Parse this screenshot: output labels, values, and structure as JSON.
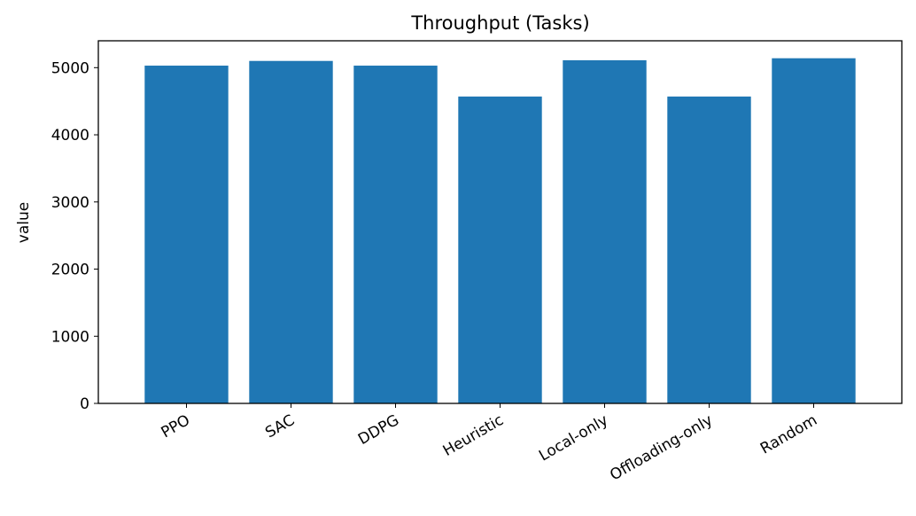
{
  "chart_data": {
    "type": "bar",
    "title": "Throughput (Tasks)",
    "xlabel": "",
    "ylabel": "value",
    "categories": [
      "PPO",
      "SAC",
      "DDPG",
      "Heuristic",
      "Local-only",
      "Offloading-only",
      "Random"
    ],
    "values": [
      5030,
      5100,
      5030,
      4570,
      5110,
      4570,
      5140
    ],
    "ylim": [
      0,
      5400
    ],
    "yticks": [
      0,
      1000,
      2000,
      3000,
      4000,
      5000
    ],
    "grid": false,
    "bar_color": "#1f77b4"
  }
}
